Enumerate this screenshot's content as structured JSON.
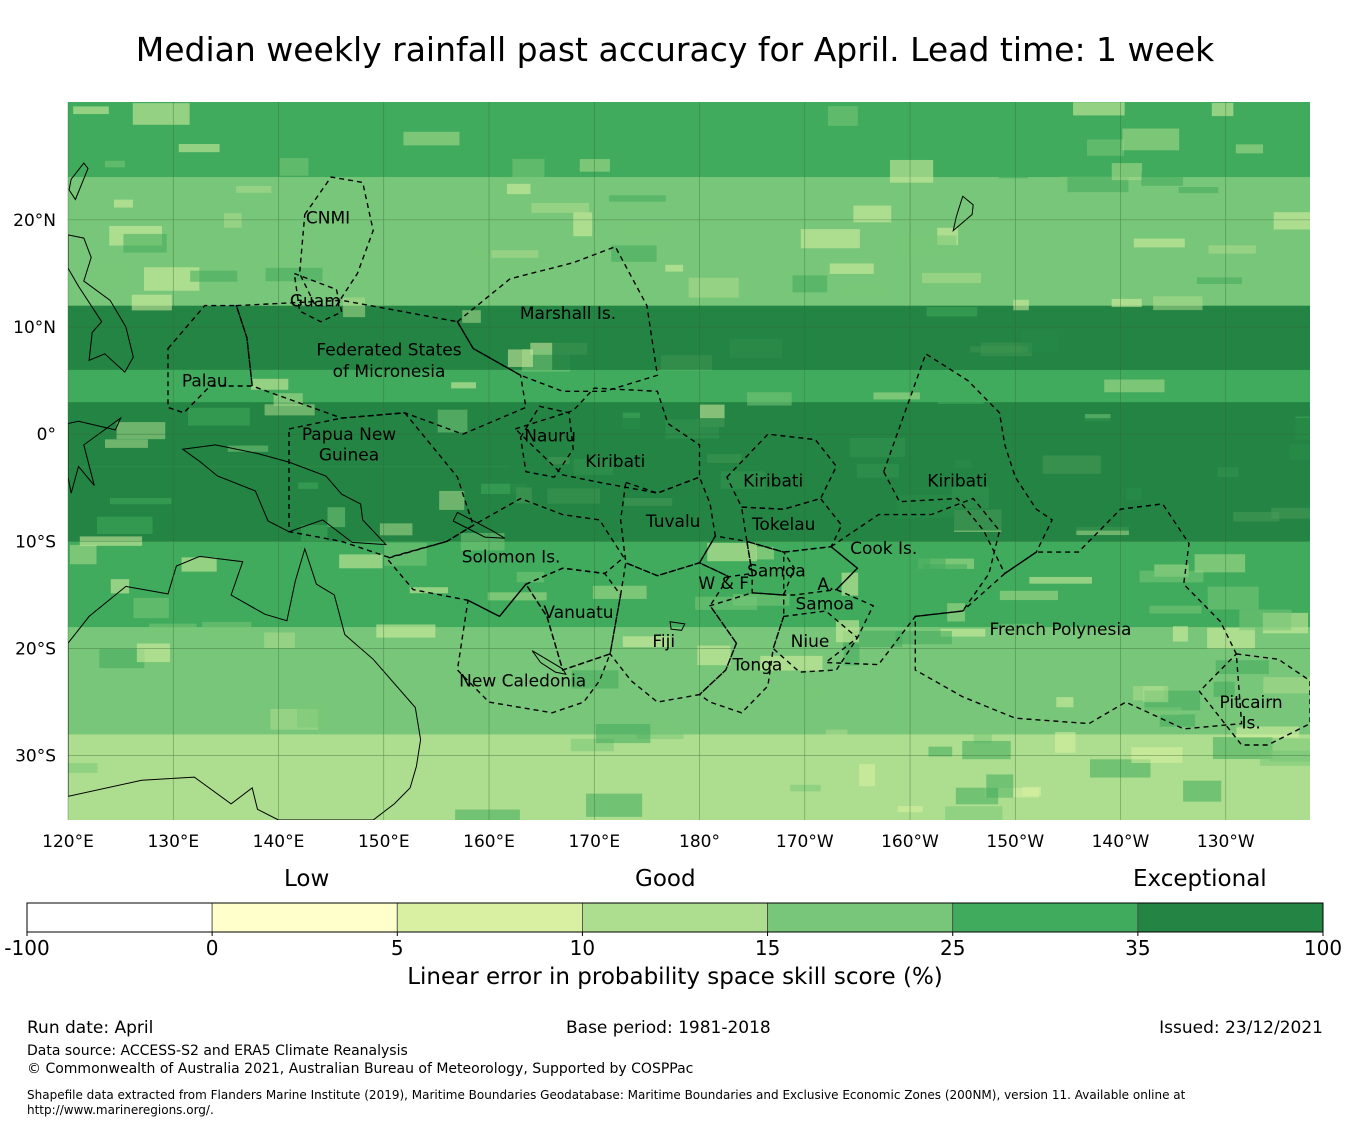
{
  "title": "Median weekly rainfall past accuracy for April. Lead time: 1 week",
  "map": {
    "lat_range": [
      -36,
      31
    ],
    "lon_range": [
      120,
      238
    ],
    "lat_ticks": [
      {
        "value": 20,
        "label": "20°N"
      },
      {
        "value": 10,
        "label": "10°N"
      },
      {
        "value": 0,
        "label": "0°"
      },
      {
        "value": -10,
        "label": "10°S"
      },
      {
        "value": -20,
        "label": "20°S"
      },
      {
        "value": -30,
        "label": "30°S"
      }
    ],
    "lon_ticks": [
      {
        "value": 120,
        "label": "120°E"
      },
      {
        "value": 130,
        "label": "130°E"
      },
      {
        "value": 140,
        "label": "140°E"
      },
      {
        "value": 150,
        "label": "150°E"
      },
      {
        "value": 160,
        "label": "160°E"
      },
      {
        "value": 170,
        "label": "170°E"
      },
      {
        "value": 180,
        "label": "180°"
      },
      {
        "value": 190,
        "label": "170°W"
      },
      {
        "value": 200,
        "label": "160°W"
      },
      {
        "value": 210,
        "label": "150°W"
      },
      {
        "value": 220,
        "label": "140°W"
      },
      {
        "value": 230,
        "label": "130°W"
      }
    ],
    "skill_bands": [
      {
        "lat_min": -36,
        "lat_max": -28,
        "class": 10
      },
      {
        "lat_min": -28,
        "lat_max": -18,
        "class": 15
      },
      {
        "lat_min": -18,
        "lat_max": -10,
        "class": 25
      },
      {
        "lat_min": -10,
        "lat_max": -3,
        "class": 35
      },
      {
        "lat_min": -3,
        "lat_max": 3,
        "class": 35
      },
      {
        "lat_min": 3,
        "lat_max": 6,
        "class": 25
      },
      {
        "lat_min": 6,
        "lat_max": 12,
        "class": 35
      },
      {
        "lat_min": 12,
        "lat_max": 16,
        "class": 15
      },
      {
        "lat_min": 16,
        "lat_max": 24,
        "class": 15
      },
      {
        "lat_min": 24,
        "lat_max": 31,
        "class": 25
      }
    ],
    "regions": [
      {
        "name": "CNMI",
        "lat": 20.2,
        "lon": 144.7
      },
      {
        "name": "Guam",
        "lat": 12.5,
        "lon": 143.5
      },
      {
        "name": "Marshall Is.",
        "lat": 11.3,
        "lon": 167.5
      },
      {
        "name": "Federated States",
        "lat": 7.9,
        "lon": 150.5
      },
      {
        "name": "of Micronesia",
        "lat": 5.9,
        "lon": 150.5
      },
      {
        "name": "Palau",
        "lat": 5.0,
        "lon": 133.0
      },
      {
        "name": "Papua New",
        "lat": 0.0,
        "lon": 146.7
      },
      {
        "name": "Guinea",
        "lat": -1.9,
        "lon": 146.7
      },
      {
        "name": "Nauru",
        "lat": -0.1,
        "lon": 165.8
      },
      {
        "name": "Kiribati",
        "lat": -2.5,
        "lon": 172.0
      },
      {
        "name": "Kiribati",
        "lat": -4.3,
        "lon": 187.0
      },
      {
        "name": "Kiribati",
        "lat": -4.3,
        "lon": 204.5
      },
      {
        "name": "Tuvalu",
        "lat": -8.1,
        "lon": 177.5
      },
      {
        "name": "Tokelau",
        "lat": -8.4,
        "lon": 188.0
      },
      {
        "name": "Solomon Is.",
        "lat": -11.4,
        "lon": 162.1
      },
      {
        "name": "Cook Is.",
        "lat": -10.6,
        "lon": 197.5
      },
      {
        "name": "Samoa",
        "lat": -12.7,
        "lon": 187.3
      },
      {
        "name": "W & F",
        "lat": -13.9,
        "lon": 182.3
      },
      {
        "name": "A.",
        "lat": -14.0,
        "lon": 192.0
      },
      {
        "name": "Samoa",
        "lat": -15.8,
        "lon": 191.9
      },
      {
        "name": "Vanuatu",
        "lat": -16.6,
        "lon": 168.5
      },
      {
        "name": "French Polynesia",
        "lat": -18.2,
        "lon": 214.3
      },
      {
        "name": "Fiji",
        "lat": -19.3,
        "lon": 176.6
      },
      {
        "name": "Niue",
        "lat": -19.3,
        "lon": 190.5
      },
      {
        "name": "Tonga",
        "lat": -21.5,
        "lon": 185.5
      },
      {
        "name": "New Caledonia",
        "lat": -23.0,
        "lon": 163.2
      },
      {
        "name": "Pitcairn",
        "lat": -25.0,
        "lon": 232.4
      },
      {
        "name": "Is.",
        "lat": -26.9,
        "lon": 232.4
      }
    ]
  },
  "colorbar": {
    "colors": [
      "#ffffff",
      "#ffffcc",
      "#d9f0a3",
      "#addd8e",
      "#78c679",
      "#41ab5d",
      "#238443"
    ],
    "ticks": [
      "-100",
      "0",
      "5",
      "10",
      "15",
      "25",
      "35",
      "100"
    ],
    "category_labels": [
      {
        "text": "Low"
      },
      {
        "text": "Good"
      },
      {
        "text": "Exceptional"
      }
    ],
    "caption": "Linear error in probability space skill score (%)"
  },
  "footer": {
    "run_date": "Run date: April",
    "base_period": "Base period: 1981-2018",
    "issued": "Issued: 23/12/2021",
    "data_source": "Data source: ACCESS-S2 and ERA5 Climate Reanalysis",
    "copyright": "© Commonwealth of Australia 2021, Australian Bureau of Meteorology, Supported by COSPPac",
    "shapefile_line1": "Shapefile data extracted from Flanders Marine Institute (2019), Maritime Boundaries Geodatabase: Maritime Boundaries and Exclusive Economic Zones (200NM), version 11. Available online at",
    "shapefile_line2": "http://www.marineregions.org/."
  }
}
